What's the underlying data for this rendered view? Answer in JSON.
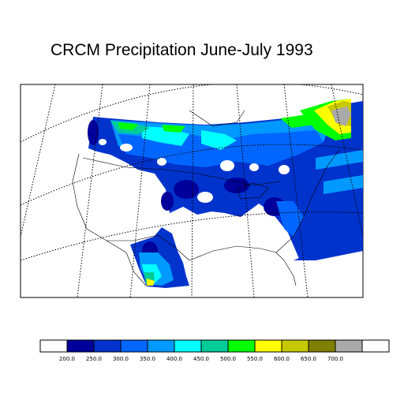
{
  "title": "CRCM Precipitation June-July 1993",
  "legend": {
    "colors": [
      "#ffffff",
      "#00009a",
      "#0033cc",
      "#0066ff",
      "#0099ff",
      "#00ffff",
      "#00cc99",
      "#00ff00",
      "#ffff00",
      "#c8c800",
      "#7f7f00",
      "#aaaaaa",
      "#ffffff"
    ],
    "labels": [
      "200.0",
      "250.0",
      "300.0",
      "350.0",
      "400.0",
      "450.0",
      "500.0",
      "550.0",
      "600.0",
      "650.0",
      "700.0"
    ]
  },
  "map": {
    "background": "#ffffff",
    "ocean_outline_color": "#000000",
    "grid_style": "dotted"
  }
}
